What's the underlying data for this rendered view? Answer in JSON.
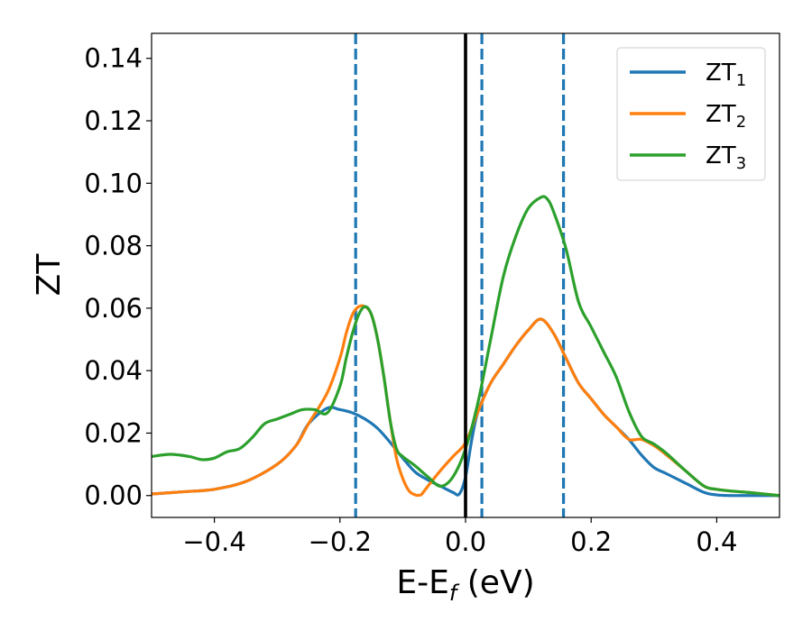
{
  "chart_data": {
    "type": "line",
    "title": "",
    "xlabel": "E-E",
    "xlabel_subscript": "f",
    "xlabel_suffix": " (eV)",
    "ylabel": "ZT",
    "xlim": [
      -0.5,
      0.5
    ],
    "ylim": [
      -0.007,
      0.148
    ],
    "x_ticks": [
      -0.4,
      -0.2,
      0.0,
      0.2,
      0.4
    ],
    "x_tick_labels": [
      "−0.4",
      "−0.2",
      "0.0",
      "0.2",
      "0.4"
    ],
    "y_ticks": [
      0.0,
      0.02,
      0.04,
      0.06,
      0.08,
      0.1,
      0.12,
      0.14
    ],
    "y_tick_labels": [
      "0.00",
      "0.02",
      "0.04",
      "0.06",
      "0.08",
      "0.10",
      "0.12",
      "0.14"
    ],
    "grid": false,
    "legend_position": "top-right",
    "vertical_lines": [
      {
        "x": 0.0,
        "style": "solid",
        "color": "#000000"
      },
      {
        "x": -0.175,
        "style": "dashed",
        "color": "#1f77b4"
      },
      {
        "x": 0.026,
        "style": "dashed",
        "color": "#1f77b4"
      },
      {
        "x": 0.156,
        "style": "dashed",
        "color": "#1f77b4"
      }
    ],
    "series": [
      {
        "name": "ZT",
        "subscript": "1",
        "color": "#1f77b4",
        "x": [
          -0.5,
          -0.45,
          -0.4,
          -0.35,
          -0.3,
          -0.27,
          -0.25,
          -0.22,
          -0.2,
          -0.18,
          -0.16,
          -0.14,
          -0.12,
          -0.1,
          -0.08,
          -0.06,
          -0.04,
          -0.02,
          -0.01,
          0.0,
          0.01,
          0.02,
          0.04,
          0.06,
          0.08,
          0.1,
          0.12,
          0.14,
          0.16,
          0.18,
          0.2,
          0.22,
          0.24,
          0.26,
          0.28,
          0.3,
          0.32,
          0.35,
          0.38,
          0.4,
          0.42,
          0.45,
          0.5
        ],
        "y": [
          0.0005,
          0.0012,
          0.002,
          0.0045,
          0.01,
          0.016,
          0.023,
          0.028,
          0.0275,
          0.0265,
          0.0245,
          0.0215,
          0.017,
          0.012,
          0.0075,
          0.005,
          0.003,
          0.001,
          0.0005,
          0.006,
          0.018,
          0.027,
          0.036,
          0.042,
          0.048,
          0.053,
          0.0565,
          0.052,
          0.044,
          0.036,
          0.031,
          0.026,
          0.022,
          0.018,
          0.013,
          0.009,
          0.007,
          0.004,
          0.001,
          0.0002,
          0.0,
          0.0,
          0.0
        ]
      },
      {
        "name": "ZT",
        "subscript": "2",
        "color": "#ff7f0e",
        "x": [
          -0.5,
          -0.45,
          -0.4,
          -0.35,
          -0.3,
          -0.27,
          -0.25,
          -0.22,
          -0.2,
          -0.19,
          -0.18,
          -0.17,
          -0.16,
          -0.15,
          -0.14,
          -0.13,
          -0.12,
          -0.11,
          -0.1,
          -0.09,
          -0.08,
          -0.075,
          -0.07,
          -0.06,
          -0.04,
          -0.02,
          0.0,
          0.02,
          0.04,
          0.06,
          0.08,
          0.1,
          0.12,
          0.14,
          0.16,
          0.18,
          0.2,
          0.22,
          0.24,
          0.26,
          0.28,
          0.3,
          0.32,
          0.35,
          0.38,
          0.4,
          0.42,
          0.45,
          0.5
        ],
        "y": [
          0.0005,
          0.0012,
          0.002,
          0.0045,
          0.01,
          0.016,
          0.023,
          0.033,
          0.044,
          0.052,
          0.058,
          0.0605,
          0.0605,
          0.058,
          0.05,
          0.038,
          0.024,
          0.012,
          0.0055,
          0.0015,
          0.0002,
          0.0001,
          0.0004,
          0.003,
          0.008,
          0.0125,
          0.017,
          0.027,
          0.036,
          0.042,
          0.048,
          0.053,
          0.0565,
          0.052,
          0.044,
          0.036,
          0.031,
          0.026,
          0.022,
          0.018,
          0.018,
          0.016,
          0.013,
          0.008,
          0.003,
          0.002,
          0.0015,
          0.001,
          0.0
        ]
      },
      {
        "name": "ZT",
        "subscript": "3",
        "color": "#2ca02c",
        "x": [
          -0.5,
          -0.47,
          -0.44,
          -0.42,
          -0.4,
          -0.38,
          -0.36,
          -0.34,
          -0.32,
          -0.3,
          -0.28,
          -0.26,
          -0.24,
          -0.22,
          -0.2,
          -0.19,
          -0.18,
          -0.17,
          -0.16,
          -0.15,
          -0.14,
          -0.13,
          -0.12,
          -0.11,
          -0.1,
          -0.08,
          -0.06,
          -0.04,
          -0.02,
          0.0,
          0.02,
          0.04,
          0.06,
          0.08,
          0.1,
          0.12,
          0.13,
          0.14,
          0.16,
          0.18,
          0.2,
          0.22,
          0.24,
          0.26,
          0.28,
          0.3,
          0.32,
          0.35,
          0.38,
          0.4,
          0.42,
          0.45,
          0.5
        ],
        "y": [
          0.0125,
          0.0132,
          0.0125,
          0.0115,
          0.012,
          0.014,
          0.015,
          0.0185,
          0.023,
          0.0245,
          0.026,
          0.0275,
          0.0275,
          0.0265,
          0.035,
          0.044,
          0.052,
          0.058,
          0.0605,
          0.058,
          0.05,
          0.038,
          0.024,
          0.015,
          0.0125,
          0.0095,
          0.006,
          0.003,
          0.006,
          0.015,
          0.03,
          0.05,
          0.07,
          0.083,
          0.092,
          0.0955,
          0.095,
          0.091,
          0.079,
          0.062,
          0.054,
          0.046,
          0.038,
          0.027,
          0.019,
          0.0165,
          0.0135,
          0.008,
          0.003,
          0.002,
          0.0015,
          0.001,
          0.0
        ]
      }
    ]
  }
}
